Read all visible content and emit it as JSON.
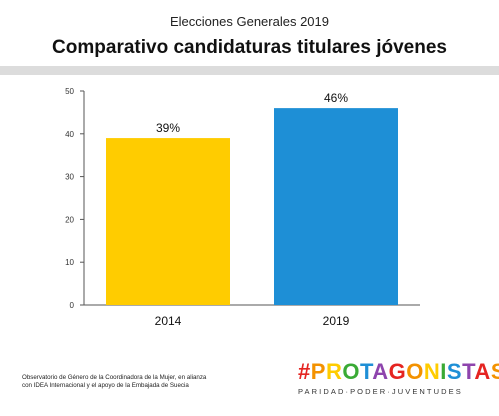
{
  "header": {
    "supertitle": "Elecciones Generales 2019",
    "title": "Comparativo  candidaturas titulares jóvenes"
  },
  "chart_data": {
    "type": "bar",
    "categories": [
      "2014",
      "2019"
    ],
    "values": [
      39,
      46
    ],
    "data_labels": [
      "39%",
      "46%"
    ],
    "colors": [
      "#FFCC00",
      "#1E8FD6"
    ],
    "ylim": [
      0,
      50
    ],
    "yticks": [
      0,
      10,
      20,
      30,
      40,
      50
    ],
    "title": "Comparativo  candidaturas titulares jóvenes",
    "xlabel": "",
    "ylabel": "",
    "grid": false,
    "legend": "none"
  },
  "footer": {
    "footnote_line1": "Observatorio de Género de la Coordinadora de la Mujer, en alianza",
    "footnote_line2": "con IDEA Internacional y el apoyo de la Embajada de Suecia",
    "brand_name": "#PROTAGONISTAS",
    "brand_tagline": "PARIDAD·PODER·JUVENTUDES",
    "brand_colors": [
      "#E52421",
      "#F39200",
      "#FFCC00",
      "#3AAA35",
      "#1E8FD6",
      "#8E44AD"
    ]
  }
}
